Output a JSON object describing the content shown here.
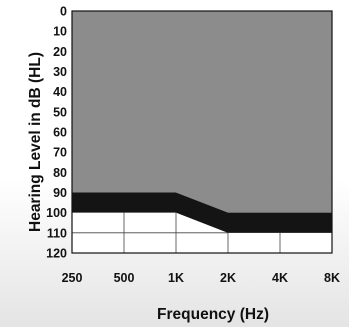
{
  "chart_data": {
    "type": "area",
    "title": "",
    "xlabel": "Frequency (Hz)",
    "ylabel": "Hearing Level in dB (HL)",
    "x_categories": [
      "250",
      "500",
      "1K",
      "2K",
      "4K",
      "8K"
    ],
    "y_ticks": [
      "0",
      "10",
      "20",
      "30",
      "40",
      "50",
      "60",
      "70",
      "80",
      "90",
      "100",
      "110",
      "120"
    ],
    "ylim": [
      0,
      120
    ],
    "y_inverted": true,
    "grid": true,
    "colors": {
      "upper_region": "#8c8c8c",
      "band": "#141414",
      "lower_region": "#ffffff",
      "grid": "#444444"
    },
    "series": [
      {
        "values": [
          90,
          90,
          90,
          100,
          100,
          100
        ]
      },
      {
        "values": [
          100,
          100,
          100,
          110,
          110,
          110
        ]
      }
    ]
  }
}
